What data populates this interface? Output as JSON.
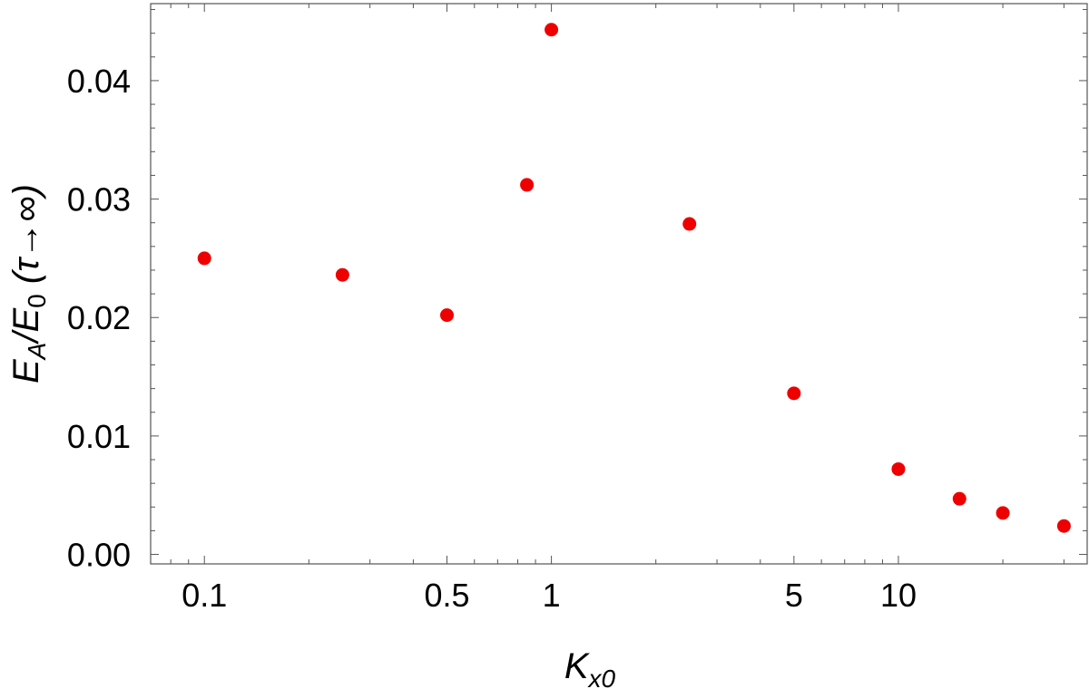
{
  "chart_data": {
    "type": "scatter",
    "x_scale": "log",
    "xlim": [
      0.07,
      35
    ],
    "ylim": [
      -0.0008,
      0.0465
    ],
    "x_ticks": [
      {
        "value": 0.1,
        "label": "0.1"
      },
      {
        "value": 0.5,
        "label": "0.5"
      },
      {
        "value": 1,
        "label": "1"
      },
      {
        "value": 5,
        "label": "5"
      },
      {
        "value": 10,
        "label": "10"
      }
    ],
    "y_ticks": [
      {
        "value": 0.0,
        "label": "0.00"
      },
      {
        "value": 0.01,
        "label": "0.01"
      },
      {
        "value": 0.02,
        "label": "0.02"
      },
      {
        "value": 0.03,
        "label": "0.03"
      },
      {
        "value": 0.04,
        "label": "0.04"
      }
    ],
    "xlabel": {
      "main": "K",
      "sub": "x0"
    },
    "ylabel": {
      "e1": "E",
      "s1": "A",
      "slash": "/",
      "e2": "E",
      "s2": "0",
      "rest": " (τ→∞)"
    },
    "series": [
      {
        "color": "#ee0000",
        "x": [
          0.1,
          0.25,
          0.5,
          0.85,
          1.0,
          2.5,
          5,
          10,
          15,
          20,
          30
        ],
        "y": [
          0.025,
          0.0236,
          0.0202,
          0.0312,
          0.0443,
          0.0279,
          0.0136,
          0.0072,
          0.0047,
          0.0035,
          0.0024
        ]
      }
    ],
    "grid": false,
    "legend": "none"
  }
}
